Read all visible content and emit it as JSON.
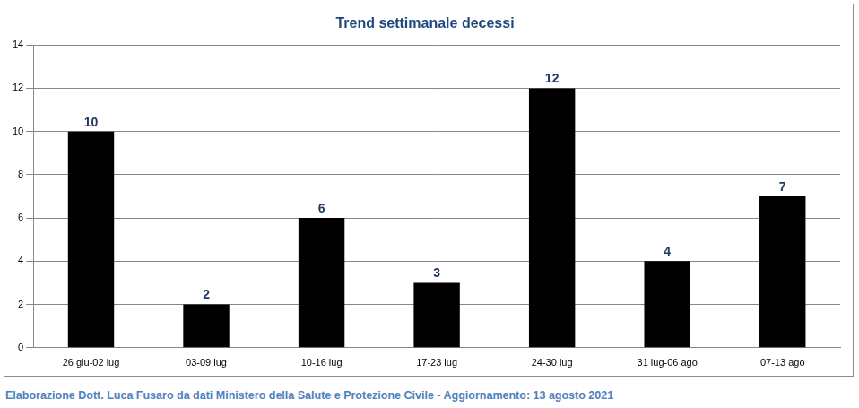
{
  "chart_data": {
    "type": "bar",
    "title": "Trend settimanale decessi",
    "caption": "Elaborazione Dott. Luca Fusaro da dati Ministero della Salute e Protezione Civile - Aggiornamento: 13 agosto 2021",
    "categories": [
      "26 giu-02 lug",
      "03-09 lug",
      "10-16 lug",
      "17-23 lug",
      "24-30 lug",
      "31 lug-06 ago",
      "07-13 ago"
    ],
    "values": [
      10,
      2,
      6,
      3,
      12,
      4,
      7
    ],
    "color": "#000000",
    "ylim": [
      0,
      14
    ],
    "yticks": [
      0,
      2,
      4,
      6,
      8,
      10,
      12,
      14
    ],
    "grid": true,
    "data_labels": true
  }
}
